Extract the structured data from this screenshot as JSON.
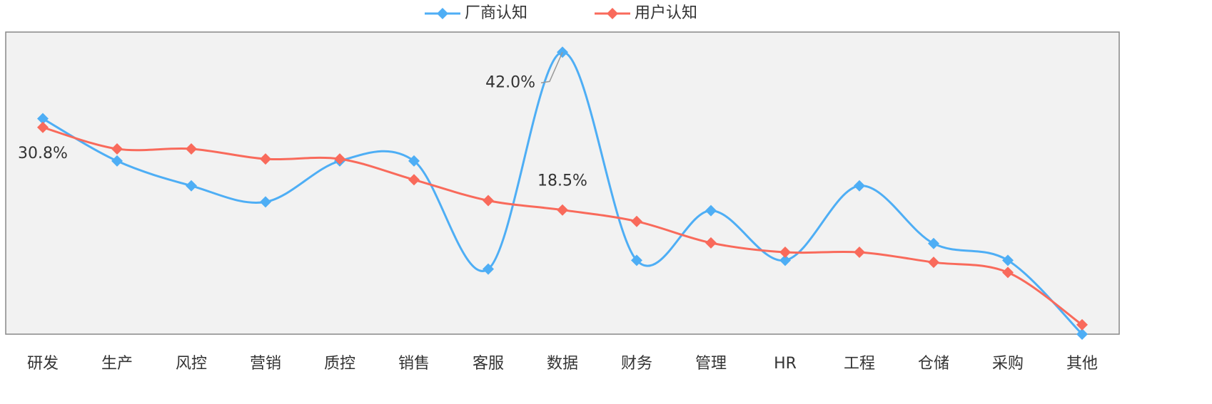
{
  "chart_data": {
    "type": "line",
    "categories": [
      "研发",
      "生产",
      "风控",
      "营销",
      "质控",
      "销售",
      "客服",
      "数据",
      "财务",
      "管理",
      "HR",
      "工程",
      "仓储",
      "采购",
      "其他"
    ],
    "series": [
      {
        "name": "厂商认知",
        "color": "#4eaef5",
        "values": [
          32.1,
          25.8,
          22.1,
          19.7,
          25.8,
          25.8,
          9.7,
          42.0,
          11.0,
          18.4,
          11.0,
          22.1,
          13.5,
          11.0,
          0
        ],
        "value_labels": [
          null,
          null,
          null,
          null,
          null,
          null,
          null,
          "42.0%",
          null,
          null,
          null,
          null,
          null,
          null,
          null
        ]
      },
      {
        "name": "用户认知",
        "color": "#f96a5b",
        "values": [
          30.8,
          27.6,
          27.6,
          26.1,
          26.1,
          23.0,
          19.9,
          18.5,
          16.8,
          13.6,
          12.2,
          12.2,
          10.7,
          9.2,
          1.4
        ],
        "value_labels": [
          "30.8%",
          null,
          null,
          null,
          null,
          null,
          null,
          "18.5%",
          null,
          null,
          null,
          null,
          null,
          null,
          null
        ]
      }
    ],
    "ylim": [
      0,
      45
    ],
    "legend": "top",
    "smooth": true
  }
}
